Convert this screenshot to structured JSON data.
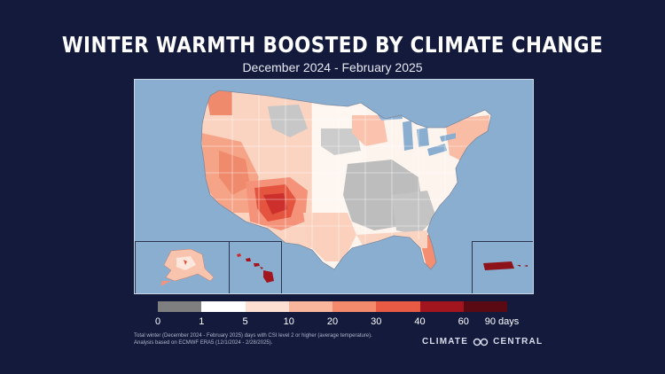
{
  "header": {
    "title": "WINTER WARMTH BOOSTED BY CLIMATE CHANGE",
    "subtitle": "December 2024 - February 2025"
  },
  "legend": {
    "items": [
      {
        "label": "0",
        "color": "#7f7f7f"
      },
      {
        "label": "1",
        "color": "#ffffff"
      },
      {
        "label": "5",
        "color": "#fde0d2"
      },
      {
        "label": "10",
        "color": "#f9b69c"
      },
      {
        "label": "20",
        "color": "#f48a6c"
      },
      {
        "label": "30",
        "color": "#e85a43"
      },
      {
        "label": "40",
        "color": "#cc2a2a"
      },
      {
        "label": "60",
        "color": "#a2151f"
      },
      {
        "label": "90 days",
        "color": "#5a0a12"
      }
    ]
  },
  "footnote": {
    "line1": "Total winter (December 2024 - February 2025) days with CSI level 2 or higher (average temperature).",
    "line2": "Analysis based on ECMWF ERA5 (12/1/2024 - 2/28/2025)."
  },
  "brand": {
    "name": "CLIMATE",
    "name2": "CENTRAL"
  },
  "colors": {
    "background": "#131a3c",
    "ocean": "#8aaecf",
    "grey": "#b9b9b9"
  }
}
